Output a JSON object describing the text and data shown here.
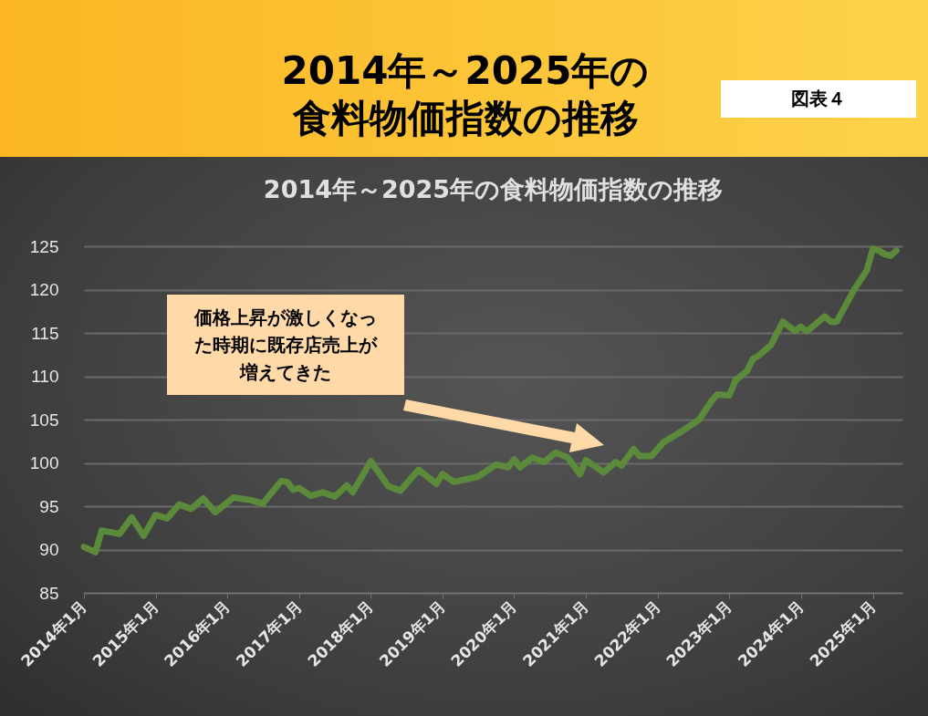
{
  "chart_data": {
    "type": "line",
    "title": "2014年～2025年の食料物価指数の推移",
    "subtitle": "2014年～2025年の食料物価指数の推移",
    "annotations": [
      "図表４",
      "価格上昇が激しくなった時期に既存店売上が増えてきた"
    ],
    "x": [
      "2014-01",
      "2014-03",
      "2014-04",
      "2014-07",
      "2014-09",
      "2014-11",
      "2015-01",
      "2015-03",
      "2015-05",
      "2015-07",
      "2015-09",
      "2015-11",
      "2016-02",
      "2016-05",
      "2016-07",
      "2016-08",
      "2016-10",
      "2016-11",
      "2016-12",
      "2017-01",
      "2017-03",
      "2017-05",
      "2017-07",
      "2017-09",
      "2017-10",
      "2018-01",
      "2018-04",
      "2018-06",
      "2018-09",
      "2018-12",
      "2019-01",
      "2019-03",
      "2019-07",
      "2019-10",
      "2019-12",
      "2020-01",
      "2020-02",
      "2020-04",
      "2020-06",
      "2020-08",
      "2020-10",
      "2020-12",
      "2021-01",
      "2021-04",
      "2021-06",
      "2021-07",
      "2021-09",
      "2021-10",
      "2021-12",
      "2022-02",
      "2022-05",
      "2022-08",
      "2022-10",
      "2022-11",
      "2023-01",
      "2023-02",
      "2023-04",
      "2023-05",
      "2023-06",
      "2023-08",
      "2023-10",
      "2023-12",
      "2024-01",
      "2024-02",
      "2024-05",
      "2024-06",
      "2024-07",
      "2024-10",
      "2024-12",
      "2025-01",
      "2025-02",
      "2025-03",
      "2025-04",
      "2025-05"
    ],
    "series": [
      {
        "color": "#5b8a3a",
        "values": [
          90.3,
          89.7,
          92.2,
          91.8,
          93.7,
          91.6,
          94.0,
          93.6,
          95.2,
          94.7,
          95.9,
          94.3,
          96.0,
          95.7,
          95.3,
          96.2,
          97.9,
          97.8,
          96.9,
          97.1,
          96.2,
          96.6,
          96.1,
          97.4,
          96.6,
          100.2,
          97.3,
          96.8,
          99.2,
          97.6,
          98.7,
          97.8,
          98.4,
          99.8,
          99.5,
          100.4,
          99.5,
          100.6,
          100.1,
          101.2,
          100.6,
          98.7,
          100.3,
          98.9,
          100.1,
          99.7,
          101.6,
          100.8,
          100.8,
          102.4,
          103.6,
          105.0,
          107.1,
          107.9,
          107.8,
          109.5,
          110.6,
          112.0,
          112.4,
          113.6,
          116.3,
          115.2,
          115.7,
          115.2,
          116.9,
          116.3,
          116.3,
          120.1,
          122.2,
          124.7,
          124.5,
          124.1,
          123.9,
          124.5
        ]
      }
    ],
    "xlim": [
      "2014-01",
      "2025-06"
    ],
    "xticks": [
      {
        "value": "2014-01",
        "label": "2014年1月"
      },
      {
        "value": "2015-01",
        "label": "2015年1月"
      },
      {
        "value": "2016-01",
        "label": "2016年1月"
      },
      {
        "value": "2017-01",
        "label": "2017年1月"
      },
      {
        "value": "2018-01",
        "label": "2018年1月"
      },
      {
        "value": "2019-01",
        "label": "2019年1月"
      },
      {
        "value": "2020-01",
        "label": "2020年1月"
      },
      {
        "value": "2021-01",
        "label": "2021年1月"
      },
      {
        "value": "2022-01",
        "label": "2022年1月"
      },
      {
        "value": "2023-01",
        "label": "2023年1月"
      },
      {
        "value": "2024-01",
        "label": "2024年1月"
      },
      {
        "value": "2025-01",
        "label": "2025年1月"
      }
    ],
    "ylim": [
      85,
      125
    ],
    "yticks": [
      85,
      90,
      95,
      100,
      105,
      110,
      115,
      120,
      125
    ],
    "grid": "y"
  }
}
